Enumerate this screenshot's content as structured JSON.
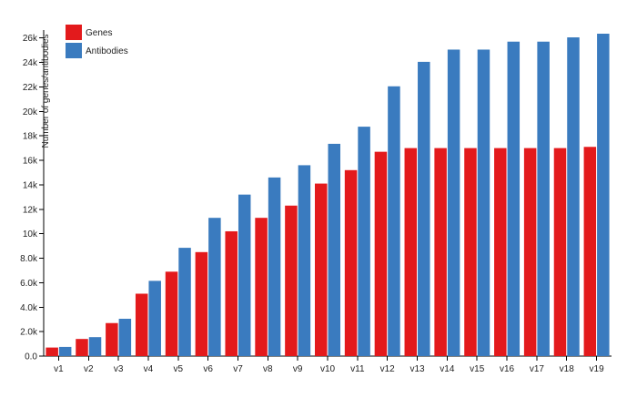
{
  "chart_data": {
    "type": "bar",
    "title": "",
    "xlabel": "",
    "ylabel": "Number of genes/antibodies",
    "categories": [
      "v1",
      "v2",
      "v3",
      "v4",
      "v5",
      "v6",
      "v7",
      "v8",
      "v9",
      "v10",
      "v11",
      "v12",
      "v13",
      "v14",
      "v15",
      "v16",
      "v17",
      "v18",
      "v19"
    ],
    "series": [
      {
        "name": "Genes",
        "color": "#e31a1c",
        "values": [
          700,
          1400,
          2700,
          5100,
          6900,
          8500,
          10200,
          11300,
          12300,
          14100,
          15200,
          16700,
          17000,
          17000,
          17000,
          17000,
          17000,
          17000,
          17100
        ]
      },
      {
        "name": "Antibodies",
        "color": "#3a7bbf",
        "values": [
          750,
          1550,
          3050,
          6150,
          8850,
          11300,
          13200,
          14600,
          15600,
          17350,
          18750,
          22050,
          24050,
          25050,
          25050,
          25700,
          25700,
          26050,
          26350
        ]
      }
    ],
    "yticks": [
      0,
      2000,
      4000,
      6000,
      8000,
      10000,
      12000,
      14000,
      16000,
      18000,
      20000,
      22000,
      24000,
      26000
    ],
    "ytick_labels": [
      "0.0",
      "2.0k",
      "4.0k",
      "6.0k",
      "8.0k",
      "10k",
      "12k",
      "14k",
      "16k",
      "18k",
      "20k",
      "22k",
      "24k",
      "26k"
    ],
    "ylim": [
      0,
      26350
    ],
    "grid": false,
    "legend_position": "top-left"
  }
}
